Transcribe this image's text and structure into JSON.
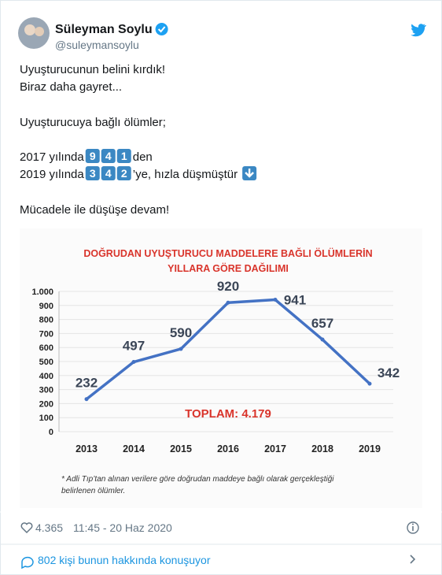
{
  "tweet": {
    "name": "Süleyman Soylu",
    "handle": "@suleymansoylu",
    "lines": [
      {
        "text": "Uyuşturucunun belini kırdık!"
      },
      {
        "text": "Biraz daha gayret..."
      },
      {
        "text": "Uyuşturucuya bağlı ölümler;"
      },
      {
        "text": "2017 yılında ",
        "keycaps": [
          "9",
          "4",
          "1"
        ],
        "after": " den"
      },
      {
        "text": "2019 yılında ",
        "keycaps": [
          "3",
          "4",
          "2"
        ],
        "after": "’ye, hızla düşmüştür"
      },
      {
        "text": "Mücadele ile düşüşe devam!"
      }
    ],
    "likes": "4.365",
    "time": "11:45 - 20 Haz 2020",
    "conversation": "802 kişi bunun hakkında konuşuyor"
  },
  "chart_data": {
    "type": "line",
    "title": [
      "DOĞRUDAN UYUŞTURUCU MADDELERE BAĞLI ÖLÜMLERİN",
      "YILLARA GÖRE DAĞILIMI"
    ],
    "categories": [
      "2013",
      "2014",
      "2015",
      "2016",
      "2017",
      "2018",
      "2019"
    ],
    "values": [
      232,
      497,
      590,
      920,
      941,
      657,
      342
    ],
    "color": "#4472c4",
    "ylim": [
      0,
      1000
    ],
    "yticks": [
      0,
      100,
      200,
      300,
      400,
      500,
      600,
      700,
      800,
      900,
      {
        "value": 1000,
        "label": "1.000"
      }
    ],
    "grid": true,
    "annotation": "TOPLAM: 4.179",
    "footnote": [
      "* Adli Tıp’tan alınan verilere göre doğrudan maddeye bağlı olarak gerçekleştiği",
      "belirlenen ölümler."
    ]
  }
}
